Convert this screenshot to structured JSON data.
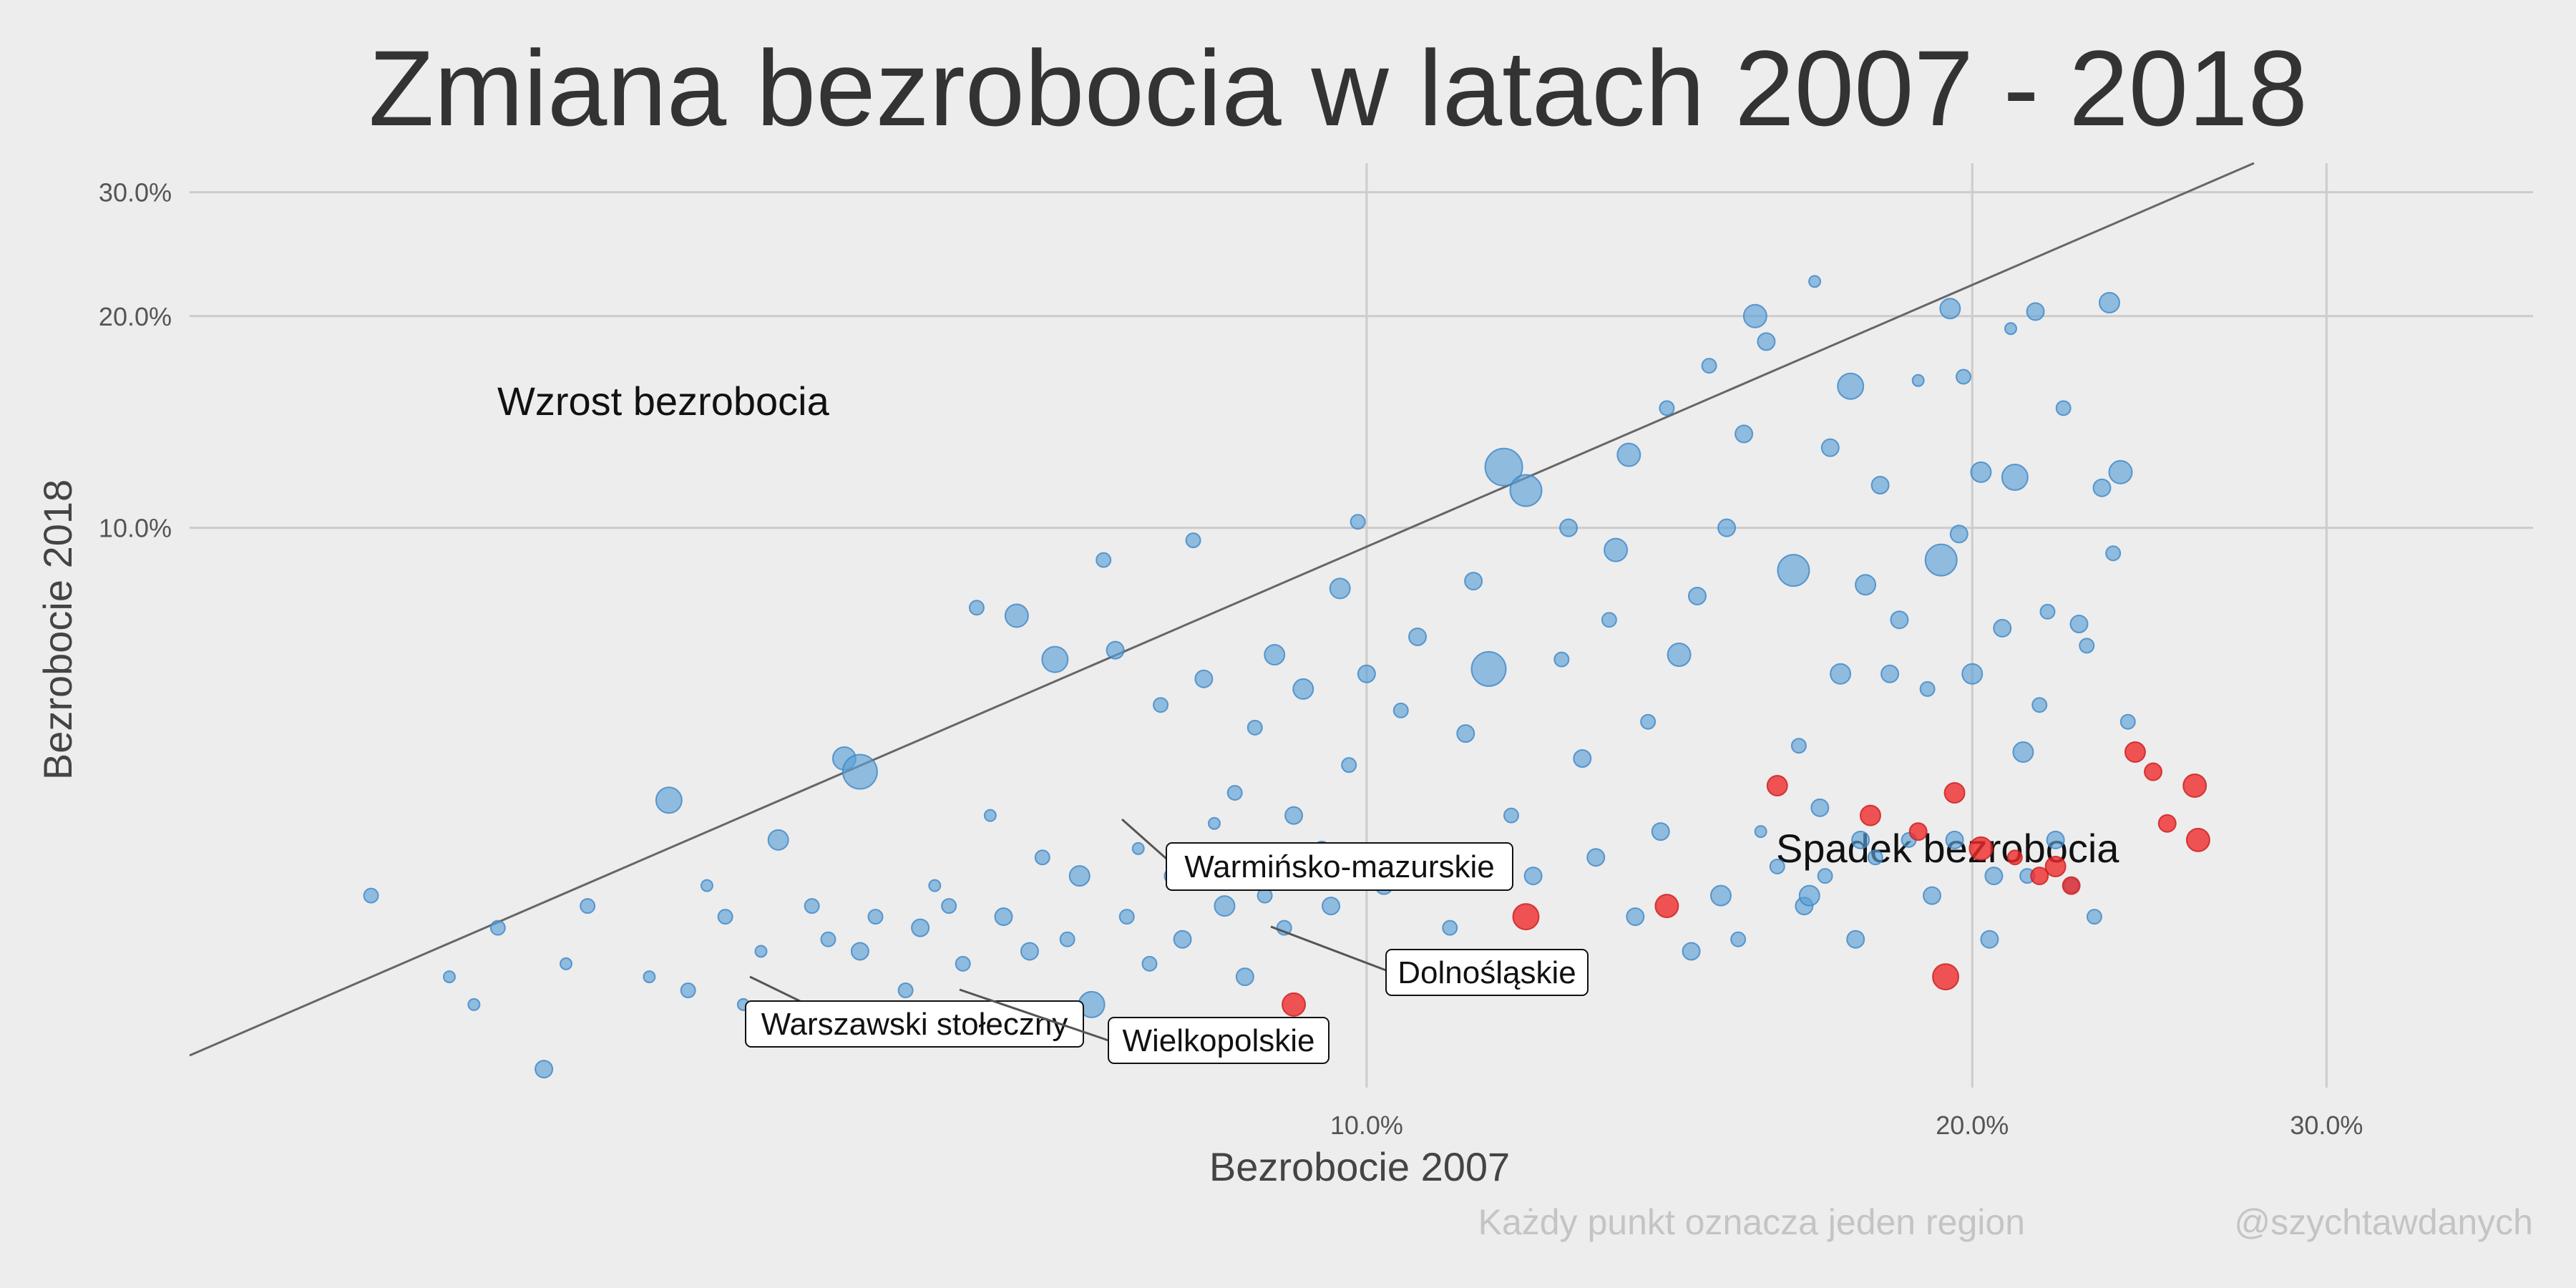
{
  "chart_data": {
    "type": "scatter",
    "title": "Zmiana bezrobocia w latach 2007 - 2018",
    "xlabel": "Bezrobocie 2007",
    "ylabel": "Bezrobocie 2018",
    "x_scale": "log",
    "y_scale": "log",
    "xlim": [
      2.6,
      38.0
    ],
    "ylim": [
      1.6,
      33.0
    ],
    "x_ticks": [
      {
        "value": 10,
        "label": "10.0%"
      },
      {
        "value": 20,
        "label": "20.0%"
      },
      {
        "value": 30,
        "label": "30.0%"
      }
    ],
    "y_ticks": [
      {
        "value": 10,
        "label": "10.0%"
      },
      {
        "value": 20,
        "label": "20.0%"
      },
      {
        "value": 30,
        "label": "30.0%"
      }
    ],
    "grid": true,
    "reference_line": "y = x",
    "colors": {
      "regions": "#5b9fd6",
      "highlighted": "#ee2b2b",
      "line": "#666666",
      "grid": "#cccccc"
    },
    "quadrant_labels": {
      "upper": "Wzrost bezrobocia",
      "lower": "Spadek bezrobocia"
    },
    "footer": {
      "note": "Każdy punkt oznacza jeden region",
      "credit": "@szychtawdanych"
    },
    "series": [
      {
        "points": [
          [
            3.2,
            3.0,
            5
          ],
          [
            3.5,
            2.3,
            4
          ],
          [
            3.6,
            2.1,
            4
          ],
          [
            3.7,
            2.7,
            5
          ],
          [
            3.9,
            1.7,
            6
          ],
          [
            4.0,
            2.4,
            4
          ],
          [
            4.1,
            2.9,
            5
          ],
          [
            4.4,
            2.3,
            4
          ],
          [
            4.5,
            4.1,
            9
          ],
          [
            4.6,
            2.2,
            5
          ],
          [
            4.7,
            3.1,
            4
          ],
          [
            4.8,
            2.8,
            5
          ],
          [
            4.9,
            2.1,
            4
          ],
          [
            5.0,
            2.5,
            4
          ],
          [
            5.1,
            3.6,
            7
          ],
          [
            5.3,
            2.9,
            5
          ],
          [
            5.4,
            2.6,
            5
          ],
          [
            5.5,
            4.7,
            8
          ],
          [
            5.6,
            4.5,
            12
          ],
          [
            5.6,
            2.5,
            6
          ],
          [
            5.7,
            2.8,
            5
          ],
          [
            5.8,
            1.9,
            5
          ],
          [
            5.9,
            2.2,
            5
          ],
          [
            6.0,
            2.7,
            6
          ],
          [
            6.1,
            3.1,
            4
          ],
          [
            6.2,
            2.9,
            5
          ],
          [
            6.3,
            2.4,
            5
          ],
          [
            6.4,
            7.7,
            5
          ],
          [
            6.5,
            3.9,
            4
          ],
          [
            6.6,
            2.8,
            6
          ],
          [
            6.7,
            7.5,
            8
          ],
          [
            6.8,
            2.5,
            6
          ],
          [
            6.9,
            3.4,
            5
          ],
          [
            7.0,
            6.5,
            9
          ],
          [
            7.1,
            2.6,
            5
          ],
          [
            7.2,
            3.2,
            7
          ],
          [
            7.3,
            2.1,
            9
          ],
          [
            7.4,
            9.0,
            5
          ],
          [
            7.5,
            6.7,
            6
          ],
          [
            7.6,
            2.8,
            5
          ],
          [
            7.7,
            3.5,
            4
          ],
          [
            7.8,
            2.4,
            5
          ],
          [
            7.9,
            5.6,
            5
          ],
          [
            8.0,
            3.2,
            5
          ],
          [
            8.1,
            2.6,
            6
          ],
          [
            8.2,
            9.6,
            5
          ],
          [
            8.3,
            6.1,
            6
          ],
          [
            8.4,
            3.8,
            4
          ],
          [
            8.5,
            2.9,
            7
          ],
          [
            8.6,
            4.2,
            5
          ],
          [
            8.7,
            2.3,
            6
          ],
          [
            8.8,
            5.2,
            5
          ],
          [
            8.9,
            3.0,
            5
          ],
          [
            9.0,
            6.6,
            7
          ],
          [
            9.1,
            2.7,
            5
          ],
          [
            9.2,
            3.9,
            6
          ],
          [
            9.3,
            5.9,
            7
          ],
          [
            9.5,
            3.5,
            5
          ],
          [
            9.6,
            2.9,
            6
          ],
          [
            9.7,
            8.2,
            7
          ],
          [
            9.8,
            4.6,
            5
          ],
          [
            9.9,
            10.2,
            5
          ],
          [
            10.0,
            6.2,
            6
          ],
          [
            10.2,
            3.1,
            6
          ],
          [
            10.4,
            5.5,
            5
          ],
          [
            10.6,
            7.0,
            6
          ],
          [
            10.8,
            3.4,
            5
          ],
          [
            11.0,
            2.7,
            5
          ],
          [
            11.2,
            5.1,
            6
          ],
          [
            11.3,
            8.4,
            6
          ],
          [
            11.5,
            6.3,
            12
          ],
          [
            11.7,
            12.2,
            13
          ],
          [
            11.8,
            3.9,
            5
          ],
          [
            12.0,
            11.3,
            11
          ],
          [
            12.1,
            3.2,
            6
          ],
          [
            12.3,
            2.4,
            5
          ],
          [
            12.5,
            6.5,
            5
          ],
          [
            12.6,
            10.0,
            6
          ],
          [
            12.8,
            4.7,
            6
          ],
          [
            13.0,
            3.4,
            6
          ],
          [
            13.2,
            7.4,
            5
          ],
          [
            13.3,
            9.3,
            8
          ],
          [
            13.5,
            12.7,
            8
          ],
          [
            13.6,
            2.8,
            6
          ],
          [
            13.8,
            5.3,
            5
          ],
          [
            14.0,
            3.7,
            6
          ],
          [
            14.1,
            14.8,
            5
          ],
          [
            14.3,
            6.6,
            8
          ],
          [
            14.5,
            2.5,
            6
          ],
          [
            14.6,
            8.0,
            6
          ],
          [
            14.8,
            17.0,
            5
          ],
          [
            15.0,
            3.0,
            7
          ],
          [
            15.1,
            10.0,
            6
          ],
          [
            15.3,
            2.6,
            5
          ],
          [
            15.4,
            13.6,
            6
          ],
          [
            15.6,
            20.0,
            8
          ],
          [
            15.7,
            3.7,
            4
          ],
          [
            15.8,
            18.4,
            6
          ],
          [
            16.0,
            3.3,
            5
          ],
          [
            16.3,
            8.7,
            11
          ],
          [
            16.4,
            4.9,
            5
          ],
          [
            16.5,
            2.9,
            6
          ],
          [
            16.6,
            3.0,
            7
          ],
          [
            16.7,
            22.4,
            4
          ],
          [
            16.8,
            4.0,
            6
          ],
          [
            16.9,
            3.2,
            5
          ],
          [
            17.0,
            13.0,
            6
          ],
          [
            17.2,
            6.2,
            7
          ],
          [
            17.4,
            15.9,
            9
          ],
          [
            17.5,
            2.6,
            6
          ],
          [
            17.6,
            3.6,
            6
          ],
          [
            17.7,
            8.3,
            7
          ],
          [
            17.9,
            3.4,
            5
          ],
          [
            18.0,
            11.5,
            6
          ],
          [
            18.2,
            6.2,
            6
          ],
          [
            18.4,
            7.4,
            6
          ],
          [
            18.6,
            3.6,
            5
          ],
          [
            18.8,
            16.2,
            4
          ],
          [
            19.0,
            5.9,
            5
          ],
          [
            19.1,
            3.0,
            6
          ],
          [
            19.3,
            9.0,
            11
          ],
          [
            19.5,
            20.5,
            7
          ],
          [
            19.6,
            3.6,
            6
          ],
          [
            19.7,
            9.8,
            6
          ],
          [
            19.8,
            16.4,
            5
          ],
          [
            20.0,
            6.2,
            7
          ],
          [
            20.2,
            12.0,
            7
          ],
          [
            20.4,
            2.6,
            6
          ],
          [
            20.5,
            3.2,
            6
          ],
          [
            20.7,
            7.2,
            6
          ],
          [
            20.9,
            19.2,
            4
          ],
          [
            21.0,
            11.8,
            9
          ],
          [
            21.2,
            4.8,
            7
          ],
          [
            21.3,
            3.2,
            5
          ],
          [
            21.5,
            20.3,
            6
          ],
          [
            21.6,
            5.6,
            5
          ],
          [
            21.8,
            7.6,
            5
          ],
          [
            22.0,
            3.6,
            6
          ],
          [
            22.2,
            14.8,
            5
          ],
          [
            22.4,
            3.1,
            5
          ],
          [
            22.6,
            7.3,
            6
          ],
          [
            22.8,
            6.8,
            5
          ],
          [
            23.0,
            2.8,
            5
          ],
          [
            23.2,
            11.4,
            6
          ],
          [
            23.4,
            20.9,
            7
          ],
          [
            23.5,
            9.2,
            5
          ],
          [
            23.7,
            12.0,
            8
          ],
          [
            23.9,
            5.3,
            5
          ]
        ]
      },
      {
        "points": [
          [
            9.2,
            2.1,
            8
          ],
          [
            12.0,
            2.8,
            9
          ],
          [
            14.1,
            2.9,
            8
          ],
          [
            16.0,
            4.3,
            7
          ],
          [
            17.8,
            3.9,
            7
          ],
          [
            18.8,
            3.7,
            6
          ],
          [
            19.4,
            2.3,
            9
          ],
          [
            19.6,
            4.2,
            7
          ],
          [
            20.2,
            3.5,
            8
          ],
          [
            21.0,
            3.4,
            5
          ],
          [
            21.6,
            3.2,
            6
          ],
          [
            22.0,
            3.3,
            7
          ],
          [
            22.4,
            3.1,
            6
          ],
          [
            24.1,
            4.8,
            7
          ],
          [
            24.6,
            4.5,
            6
          ],
          [
            25.0,
            3.8,
            6
          ],
          [
            25.8,
            4.3,
            8
          ],
          [
            25.9,
            3.6,
            8
          ]
        ]
      }
    ],
    "callouts": [
      {
        "label": "Warmińsko-mazurskie"
      },
      {
        "label": "Dolnośląskie"
      },
      {
        "label": "Warszawski stołeczny"
      },
      {
        "label": "Wielkopolskie"
      }
    ]
  }
}
